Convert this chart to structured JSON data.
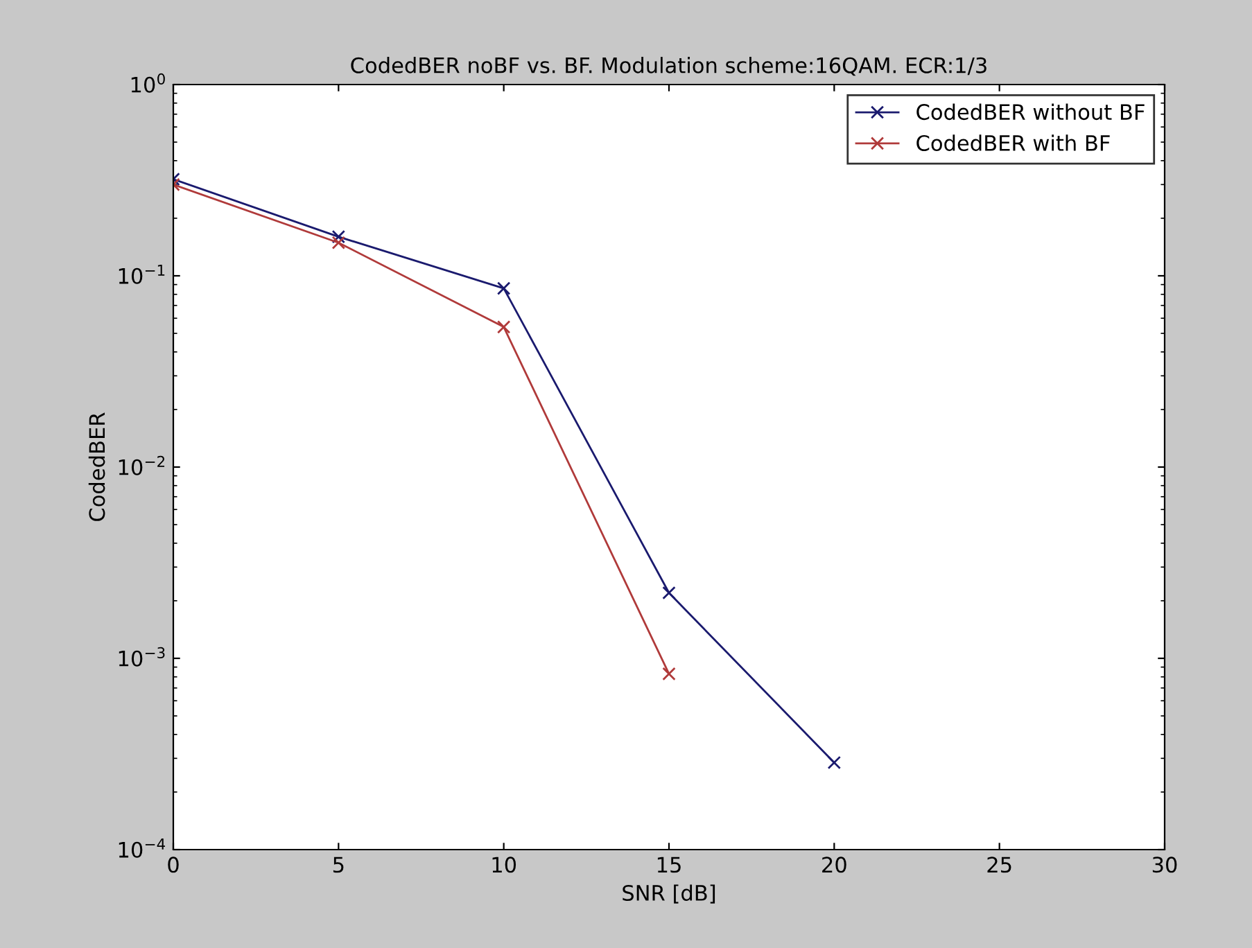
{
  "chart_data": {
    "type": "line",
    "title": "CodedBER noBF vs. BF. Modulation scheme:16QAM. ECR:1/3",
    "xlabel": "SNR [dB]",
    "ylabel": "CodedBER",
    "x": [
      0,
      5,
      10,
      15,
      20
    ],
    "series": [
      {
        "name": "CodedBER without BF",
        "color": "#1a1a6e",
        "values": [
          0.32,
          0.16,
          0.086,
          0.0022,
          0.000285
        ]
      },
      {
        "name": "CodedBER with BF",
        "color": "#b03a3a",
        "values": [
          0.3,
          0.149,
          0.054,
          0.00083,
          null
        ]
      }
    ],
    "log": "y",
    "xlim": [
      0,
      30
    ],
    "xticks": [
      0,
      5,
      10,
      15,
      20,
      25,
      30
    ],
    "ylim": [
      0.0001,
      1
    ],
    "yticks": [
      {
        "value": 0.0001,
        "label": "10$^{−4}$"
      },
      {
        "value": 0.001,
        "label": "10$^{−3}$"
      },
      {
        "value": 0.01,
        "label": "10$^{−2}$"
      },
      {
        "value": 0.1,
        "label": "10$^{−1}$"
      },
      {
        "value": 1,
        "label": "10$^{0}$"
      }
    ],
    "marker": "cross",
    "line_style": "solid",
    "grid": false,
    "legend": "top right"
  }
}
